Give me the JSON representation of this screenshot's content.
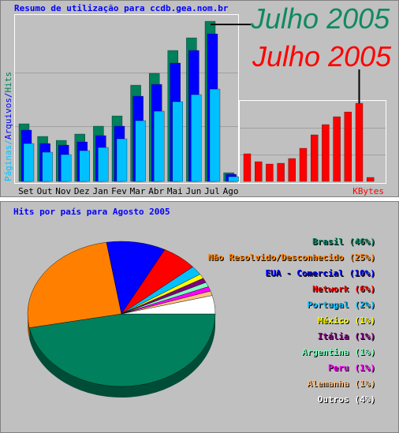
{
  "chart_data": [
    {
      "type": "bar",
      "title": "Resumo de utilização para ccdb.gea.nom.br",
      "categories": [
        "Set",
        "Out",
        "Nov",
        "Dez",
        "Jan",
        "Fev",
        "Mar",
        "Abr",
        "Mai",
        "Jun",
        "Jul",
        "Ago"
      ],
      "series": [
        {
          "name": "Hits",
          "color": "#00805c",
          "values": [
            73,
            57,
            52,
            60,
            70,
            83,
            122,
            137,
            166,
            182,
            203,
            11
          ]
        },
        {
          "name": "Arquivos",
          "color": "#0000ff",
          "values": [
            65,
            48,
            46,
            50,
            58,
            70,
            108,
            123,
            150,
            166,
            187,
            9
          ]
        },
        {
          "name": "Páginas",
          "color": "#00c0ff",
          "values": [
            48,
            37,
            34,
            39,
            43,
            54,
            77,
            89,
            101,
            110,
            117,
            6
          ]
        }
      ],
      "ylabel_separator": "/",
      "ylim": [
        0,
        210
      ],
      "annotation": "Julho 2005",
      "annotation_color": "#0f8a5f"
    },
    {
      "type": "bar",
      "xlabel": "KBytes",
      "values": [
        35,
        25,
        22,
        23,
        29,
        42,
        59,
        72,
        82,
        88,
        99,
        5
      ],
      "color": "#ff0000",
      "ylim": [
        0,
        103
      ],
      "annotation": "Julho 2005",
      "annotation_color": "#ff0000"
    },
    {
      "type": "pie",
      "title": "Hits por país para Agosto 2005",
      "categories": [
        "Brasil",
        "Não Resolvido/Desconhecido",
        "EUA - Comercial",
        "Network",
        "Portugal",
        "México",
        "Itália",
        "Argentina",
        "Peru",
        "Alemanha",
        "Outros"
      ],
      "values": [
        46,
        25,
        10,
        6,
        2,
        1,
        1,
        1,
        1,
        1,
        4
      ],
      "value_labels": [
        "(46%)",
        "(25%)",
        "(10%)",
        "(6%)",
        "(2%)",
        "(1%)",
        "(1%)",
        "(1%)",
        "(1%)",
        "(1%)",
        "(4%)"
      ],
      "colors": [
        "#00805c",
        "#ff8000",
        "#0000ff",
        "#ff0000",
        "#00c0ff",
        "#ffff00",
        "#800080",
        "#80ffc0",
        "#ff00ff",
        "#ffc080",
        "#ffffff"
      ]
    }
  ]
}
